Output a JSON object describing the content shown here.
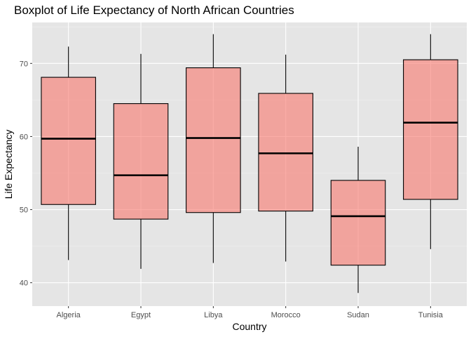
{
  "chart_data": {
    "type": "boxplot",
    "title": "Boxplot of Life Expectancy of North African Countries",
    "xlabel": "Country",
    "ylabel": "Life Expectancy",
    "categories": [
      "Algeria",
      "Egypt",
      "Libya",
      "Morocco",
      "Sudan",
      "Tunisia"
    ],
    "ylim": [
      36.8,
      75.6
    ],
    "yticks": [
      40,
      50,
      60,
      70
    ],
    "grid": true,
    "box_color": "#f8766d",
    "panel_color": "#e5e5e5",
    "boxes": [
      {
        "name": "Algeria",
        "min": 43.1,
        "q1": 50.7,
        "median": 59.7,
        "q3": 68.1,
        "max": 72.3
      },
      {
        "name": "Egypt",
        "min": 41.9,
        "q1": 48.7,
        "median": 54.7,
        "q3": 64.5,
        "max": 71.3
      },
      {
        "name": "Libya",
        "min": 42.7,
        "q1": 49.6,
        "median": 59.8,
        "q3": 69.4,
        "max": 74.0
      },
      {
        "name": "Morocco",
        "min": 42.9,
        "q1": 49.8,
        "median": 57.7,
        "q3": 65.9,
        "max": 71.2
      },
      {
        "name": "Sudan",
        "min": 38.6,
        "q1": 42.4,
        "median": 49.1,
        "q3": 54.0,
        "max": 58.6
      },
      {
        "name": "Tunisia",
        "min": 44.6,
        "q1": 51.4,
        "median": 61.9,
        "q3": 70.5,
        "max": 74.0
      }
    ]
  }
}
